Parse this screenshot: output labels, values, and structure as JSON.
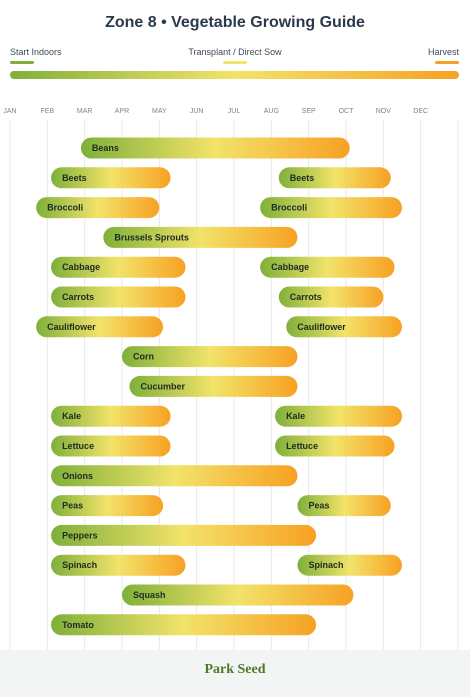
{
  "title": "Zone 8  •  Vegetable Growing Guide",
  "legend": {
    "start": "Start Indoors",
    "transplant": "Transplant / Direct Sow",
    "harvest": "Harvest"
  },
  "colors": {
    "start": "#7fb03a",
    "transplant": "#f2e36a",
    "harvest": "#f7a123",
    "title": "#2b3a4a",
    "month_text": "#7a8590",
    "grid": "#e6e8ea"
  },
  "footer": {
    "logo": "Park Seed"
  },
  "chart_data": {
    "type": "bar",
    "orientation": "horizontal-range",
    "x_unit": "month",
    "x_range": [
      0,
      12
    ],
    "months": [
      "JAN",
      "FEB",
      "MAR",
      "APR",
      "MAY",
      "JUN",
      "JUL",
      "AUG",
      "SEP",
      "OCT",
      "NOV",
      "DEC"
    ],
    "grid": true,
    "legend_position": "top",
    "rows": [
      {
        "crop": "Beans",
        "bars": [
          {
            "label": "Beans",
            "start": 1.9,
            "end": 9.1
          }
        ]
      },
      {
        "crop": "Beets",
        "bars": [
          {
            "label": "Beets",
            "start": 1.1,
            "end": 4.3
          },
          {
            "label": "Beets",
            "start": 7.2,
            "end": 10.2
          }
        ]
      },
      {
        "crop": "Broccoli",
        "bars": [
          {
            "label": "Broccoli",
            "start": 0.7,
            "end": 4.0
          },
          {
            "label": "Broccoli",
            "start": 6.7,
            "end": 10.5
          }
        ]
      },
      {
        "crop": "Brussels Sprouts",
        "bars": [
          {
            "label": "Brussels Sprouts",
            "start": 2.5,
            "end": 7.7
          }
        ]
      },
      {
        "crop": "Cabbage",
        "bars": [
          {
            "label": "Cabbage",
            "start": 1.1,
            "end": 4.7
          },
          {
            "label": "Cabbage",
            "start": 6.7,
            "end": 10.3
          }
        ]
      },
      {
        "crop": "Carrots",
        "bars": [
          {
            "label": "Carrots",
            "start": 1.1,
            "end": 4.7
          },
          {
            "label": "Carrots",
            "start": 7.2,
            "end": 10.0
          }
        ]
      },
      {
        "crop": "Cauliflower",
        "bars": [
          {
            "label": "Cauliflower",
            "start": 0.7,
            "end": 4.1
          },
          {
            "label": "Cauliflower",
            "start": 7.4,
            "end": 10.5
          }
        ]
      },
      {
        "crop": "Corn",
        "bars": [
          {
            "label": "Corn",
            "start": 3.0,
            "end": 7.7
          }
        ]
      },
      {
        "crop": "Cucumber",
        "bars": [
          {
            "label": "Cucumber",
            "start": 3.2,
            "end": 7.7
          }
        ]
      },
      {
        "crop": "Kale",
        "bars": [
          {
            "label": "Kale",
            "start": 1.1,
            "end": 4.3
          },
          {
            "label": "Kale",
            "start": 7.1,
            "end": 10.5
          }
        ]
      },
      {
        "crop": "Lettuce",
        "bars": [
          {
            "label": "Lettuce",
            "start": 1.1,
            "end": 4.3
          },
          {
            "label": "Lettuce",
            "start": 7.1,
            "end": 10.3
          }
        ]
      },
      {
        "crop": "Onions",
        "bars": [
          {
            "label": "Onions",
            "start": 1.1,
            "end": 7.7
          }
        ]
      },
      {
        "crop": "Peas",
        "bars": [
          {
            "label": "Peas",
            "start": 1.1,
            "end": 4.1
          },
          {
            "label": "Peas",
            "start": 7.7,
            "end": 10.2
          }
        ]
      },
      {
        "crop": "Peppers",
        "bars": [
          {
            "label": "Peppers",
            "start": 1.1,
            "end": 8.2
          }
        ]
      },
      {
        "crop": "Spinach",
        "bars": [
          {
            "label": "Spinach",
            "start": 1.1,
            "end": 4.7
          },
          {
            "label": "Spinach",
            "start": 7.7,
            "end": 10.5
          }
        ]
      },
      {
        "crop": "Squash",
        "bars": [
          {
            "label": "Squash",
            "start": 3.0,
            "end": 9.2
          }
        ]
      },
      {
        "crop": "Tomato",
        "bars": [
          {
            "label": "Tomato",
            "start": 1.1,
            "end": 8.2
          }
        ]
      }
    ]
  }
}
